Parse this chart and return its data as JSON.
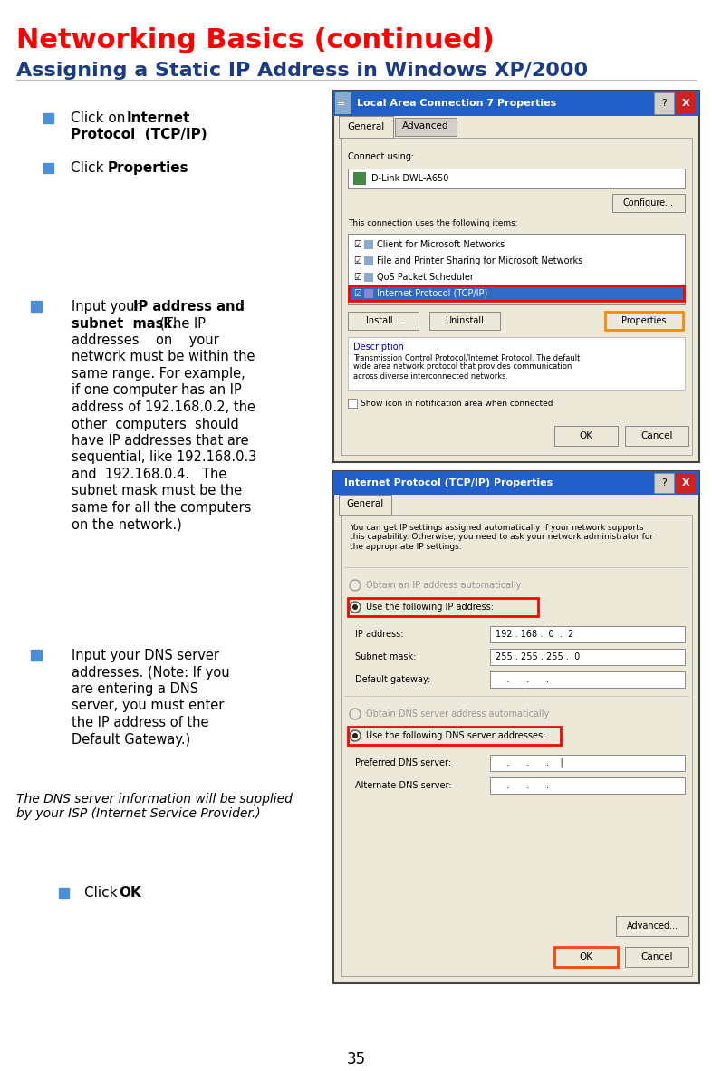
{
  "title_line1": "Networking Basics (continued)",
  "title_line2": "Assigning a Static IP Address in Windows XP/2000",
  "title_color": "#FF0000",
  "subtitle_color": "#1A3A8C",
  "bg_color": "#FFFFFF",
  "bullet_color": "#4A90D9",
  "text_color": "#000000",
  "page_number": "35",
  "fig_w": 7.86,
  "fig_h": 11.82,
  "dpi": 100
}
